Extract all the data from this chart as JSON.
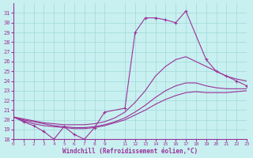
{
  "xlabel": "Windchill (Refroidissement éolien,°C)",
  "bg_color": "#c8f0f0",
  "line_color": "#993399",
  "ylim": [
    18,
    32
  ],
  "xlim": [
    0,
    23
  ],
  "yticks": [
    18,
    19,
    20,
    21,
    22,
    23,
    24,
    25,
    26,
    27,
    28,
    29,
    30,
    31
  ],
  "xticks": [
    0,
    1,
    2,
    3,
    4,
    5,
    6,
    7,
    8,
    9,
    11,
    12,
    13,
    14,
    15,
    16,
    17,
    18,
    19,
    20,
    21,
    22,
    23
  ],
  "series1_x": [
    0,
    1,
    2,
    3,
    4,
    5,
    6,
    7,
    8,
    9,
    11,
    12,
    13,
    14,
    15,
    16,
    17,
    19,
    20,
    21,
    22,
    23
  ],
  "series1_y": [
    20.3,
    19.8,
    19.4,
    18.8,
    18.0,
    19.3,
    18.5,
    18.0,
    19.2,
    20.8,
    21.2,
    29.0,
    30.5,
    30.5,
    30.3,
    30.0,
    31.2,
    26.2,
    25.0,
    24.5,
    24.0,
    23.5
  ],
  "series2_x": [
    0,
    1,
    2,
    3,
    4,
    5,
    6,
    7,
    8,
    9,
    10,
    11,
    12,
    13,
    14,
    15,
    16,
    17,
    18,
    19,
    20,
    21,
    22,
    23
  ],
  "series2_y": [
    20.3,
    20.1,
    19.9,
    19.7,
    19.6,
    19.5,
    19.5,
    19.5,
    19.6,
    19.8,
    20.2,
    20.8,
    21.8,
    23.0,
    24.5,
    25.5,
    26.2,
    26.5,
    26.0,
    25.5,
    25.0,
    24.5,
    24.2,
    24.0
  ],
  "series3_x": [
    0,
    1,
    2,
    3,
    4,
    5,
    6,
    7,
    8,
    9,
    10,
    11,
    12,
    13,
    14,
    15,
    16,
    17,
    18,
    19,
    20,
    21,
    22,
    23
  ],
  "series3_y": [
    20.3,
    20.0,
    19.8,
    19.6,
    19.4,
    19.3,
    19.2,
    19.2,
    19.3,
    19.5,
    19.8,
    20.2,
    20.8,
    21.5,
    22.3,
    23.0,
    23.5,
    23.8,
    23.8,
    23.5,
    23.3,
    23.2,
    23.2,
    23.2
  ],
  "series4_x": [
    0,
    1,
    2,
    3,
    4,
    5,
    6,
    7,
    8,
    9,
    10,
    11,
    12,
    13,
    14,
    15,
    16,
    17,
    18,
    19,
    20,
    21,
    22,
    23
  ],
  "series4_y": [
    20.3,
    19.9,
    19.6,
    19.4,
    19.3,
    19.2,
    19.1,
    19.1,
    19.2,
    19.4,
    19.7,
    20.0,
    20.5,
    21.0,
    21.6,
    22.1,
    22.5,
    22.8,
    22.9,
    22.8,
    22.8,
    22.8,
    22.9,
    23.0
  ]
}
